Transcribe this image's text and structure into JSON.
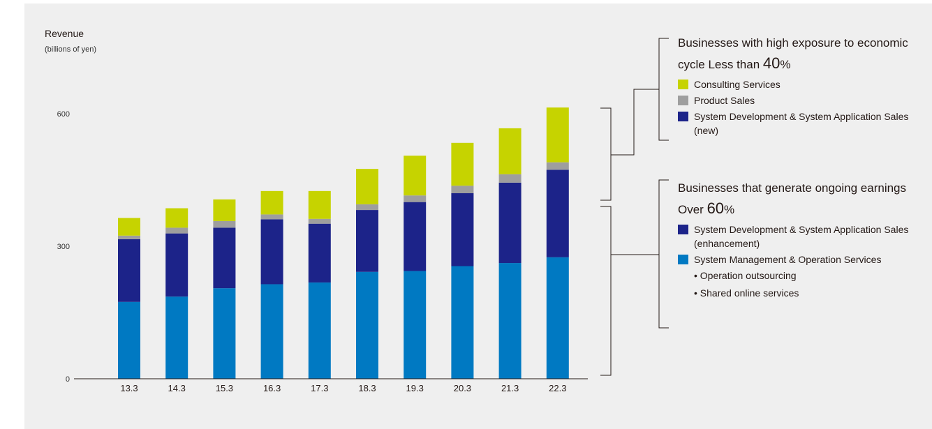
{
  "chart_data": {
    "type": "bar",
    "stacked": true,
    "title": "",
    "ylabel": "Revenue",
    "yunit": "(billions of yen)",
    "ylim": [
      0,
      600
    ],
    "yticks": [
      0,
      300,
      600
    ],
    "categories": [
      "13.3",
      "14.3",
      "15.3",
      "16.3",
      "17.3",
      "18.3",
      "19.3",
      "20.3",
      "21.3",
      "22.3"
    ],
    "series": [
      {
        "name": "System Management & Operation Services",
        "color": "#0079c2",
        "values": [
          174,
          186,
          205,
          214,
          218,
          242,
          244,
          255,
          262,
          275
        ]
      },
      {
        "name": "System Development & System Application Sales (enhancement + new)",
        "color": "#1c2389",
        "values": [
          142,
          143,
          137,
          147,
          133,
          140,
          156,
          165,
          182,
          198
        ]
      },
      {
        "name": "Product Sales",
        "color": "#9e9e9e",
        "values": [
          8,
          13,
          15,
          11,
          11,
          13,
          15,
          17,
          19,
          17
        ]
      },
      {
        "name": "Consulting Services",
        "color": "#c6d300",
        "values": [
          40,
          44,
          49,
          53,
          63,
          80,
          90,
          97,
          104,
          124
        ]
      }
    ]
  },
  "legend": {
    "high": {
      "heading_prefix": "Businesses with high exposure to economic cycle Less than ",
      "heading_pct": "40",
      "heading_suffix": "%",
      "items": [
        {
          "label": "Consulting Services",
          "color": "#c6d300"
        },
        {
          "label": "Product Sales",
          "color": "#9e9e9e"
        },
        {
          "label": "System Development & System Application Sales (new)",
          "color": "#1c2389"
        }
      ]
    },
    "ongoing": {
      "heading_prefix": "Businesses that generate ongoing earnings Over ",
      "heading_pct": "60",
      "heading_suffix": "%",
      "items": [
        {
          "label": "System Development & System Application Sales (enhancement)",
          "color": "#1c2389"
        },
        {
          "label": "System Management & Operation Services",
          "color": "#0079c2"
        }
      ],
      "bullets": [
        "• Operation outsourcing",
        "• Shared online services"
      ]
    }
  }
}
